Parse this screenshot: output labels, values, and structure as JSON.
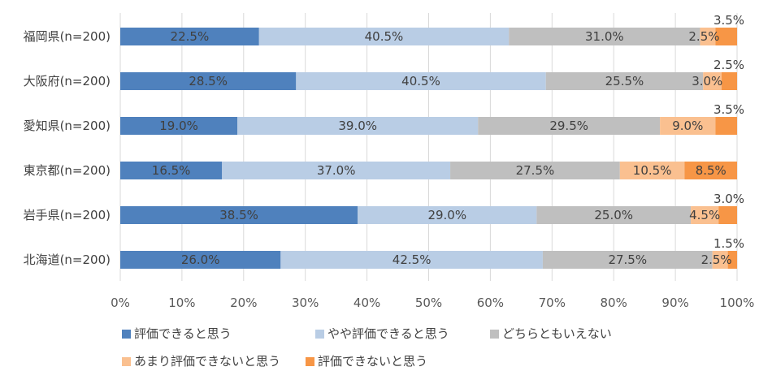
{
  "chart_data": {
    "type": "bar",
    "orientation": "horizontal",
    "stacked": true,
    "categories": [
      "福岡県(n=200)",
      "大阪府(n=200)",
      "愛知県(n=200)",
      "東京都(n=200)",
      "岩手県(n=200)",
      "北海道(n=200)"
    ],
    "series": [
      {
        "name": "評価できると思う",
        "color": "#4f81bd",
        "values": [
          22.5,
          28.5,
          19.0,
          16.5,
          38.5,
          26.0
        ],
        "labels": [
          "22.5%",
          "28.5%",
          "19.0%",
          "16.5%",
          "38.5%",
          "26.0%"
        ]
      },
      {
        "name": "やや評価できると思う",
        "color": "#b9cde5",
        "values": [
          40.5,
          40.5,
          39.0,
          37.0,
          29.0,
          42.5
        ],
        "labels": [
          "40.5%",
          "40.5%",
          "39.0%",
          "37.0%",
          "29.0%",
          "42.5%"
        ]
      },
      {
        "name": "どちらともいえない",
        "color": "#bfbfbf",
        "values": [
          31.0,
          25.5,
          29.5,
          27.5,
          25.0,
          27.5
        ],
        "labels": [
          "31.0%",
          "25.5%",
          "29.5%",
          "27.5%",
          "25.0%",
          "27.5%"
        ]
      },
      {
        "name": "あまり評価できないと思う",
        "color": "#fac090",
        "values": [
          2.5,
          3.0,
          9.0,
          10.5,
          4.5,
          2.5
        ],
        "labels": [
          "2.5%",
          "3.0%",
          "9.0%",
          "10.5%",
          "4.5%",
          "2.5%"
        ]
      },
      {
        "name": "評価できないと思う",
        "color": "#f79646",
        "values": [
          3.5,
          2.5,
          3.5,
          8.5,
          3.0,
          1.5
        ],
        "labels": [
          "3.5%",
          "2.5%",
          "3.5%",
          "8.5%",
          "3.0%",
          "1.5%"
        ]
      }
    ],
    "xlim": [
      0,
      100
    ],
    "x_ticks": [
      "0%",
      "10%",
      "20%",
      "30%",
      "40%",
      "50%",
      "60%",
      "70%",
      "80%",
      "90%",
      "100%"
    ],
    "grid": true,
    "legend_position": "bottom"
  }
}
